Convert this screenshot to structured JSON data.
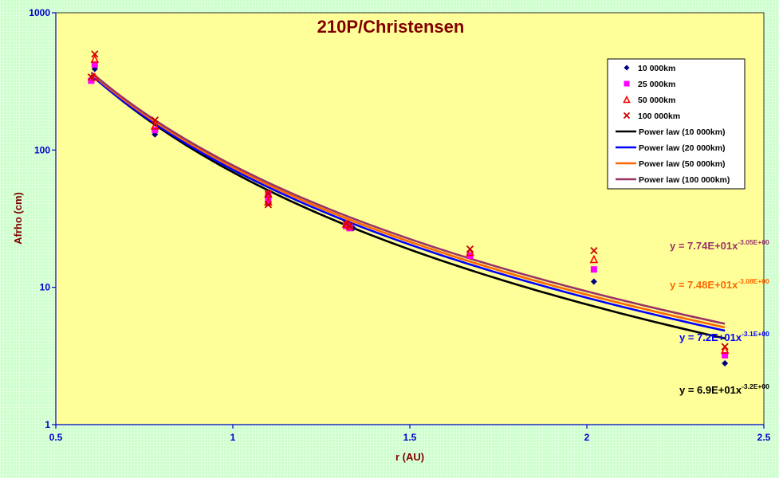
{
  "chart_data": {
    "type": "scatter",
    "title": "210P/Christensen",
    "xlabel": "r (AU)",
    "ylabel": "Afrho (cm)",
    "xlim": [
      0.5,
      2.5
    ],
    "ylim": [
      1,
      1000
    ],
    "yscale": "log",
    "x_ticks": [
      0.5,
      1,
      1.5,
      2,
      2.5
    ],
    "x_tick_labels": [
      "0.5",
      "1",
      "1.5",
      "2",
      "2.5"
    ],
    "y_ticks": [
      1,
      10,
      100,
      1000
    ],
    "y_tick_labels": [
      "1",
      "10",
      "100",
      "1000"
    ],
    "grid": false,
    "legend_position": "top-right",
    "colors": {
      "page_bg": "#ccffcc",
      "plot_bg": "#ffff99",
      "axis": "#0000cc",
      "title": "#800000"
    },
    "series": [
      {
        "name": "10 000km",
        "marker": "diamond",
        "color": "#000080",
        "x": [
          0.61,
          0.78,
          1.1,
          1.1,
          1.32,
          1.33,
          1.34,
          1.67,
          2.02,
          2.39
        ],
        "y": [
          390,
          130,
          41,
          44,
          28,
          27,
          27,
          17,
          11,
          2.8
        ]
      },
      {
        "name": "25 000km",
        "marker": "square",
        "color": "#ff00ff",
        "x": [
          0.6,
          0.61,
          0.78,
          1.1,
          1.1,
          1.32,
          1.33,
          1.67,
          2.02,
          2.39
        ],
        "y": [
          320,
          420,
          140,
          43,
          47,
          28,
          27,
          17,
          13.5,
          3.2
        ]
      },
      {
        "name": "50 000km",
        "marker": "triangle",
        "color": "#ff0000",
        "x": [
          0.61,
          0.61,
          0.78,
          1.1,
          1.1,
          1.32,
          1.33,
          1.67,
          2.02,
          2.39
        ],
        "y": [
          340,
          460,
          150,
          42,
          48,
          29,
          28,
          18,
          16,
          3.5
        ]
      },
      {
        "name": "100 000km",
        "marker": "x",
        "color": "#cc0000",
        "x": [
          0.6,
          0.61,
          0.78,
          1.1,
          1.1,
          1.32,
          1.33,
          1.67,
          2.02,
          2.39
        ],
        "y": [
          340,
          500,
          165,
          40,
          48,
          29,
          28,
          19,
          18.5,
          3.7
        ]
      }
    ],
    "fits": [
      {
        "name": "Power law (10 000km)",
        "color": "#000000",
        "a": 69.0,
        "b": -3.2,
        "equation": "y = 6.9E+01x",
        "exponent": "-3.2E+00"
      },
      {
        "name": "Power law (20 000km)",
        "color": "#0000ff",
        "a": 72.0,
        "b": -3.1,
        "equation": "y = 7.2E+01x",
        "exponent": "-3.1E+00"
      },
      {
        "name": "Power law (50 000km)",
        "color": "#ff6600",
        "a": 74.8,
        "b": -3.08,
        "equation": "y = 7.48E+01x",
        "exponent": "-3.08E+00"
      },
      {
        "name": "Power law (100 000km)",
        "color": "#993366",
        "a": 77.4,
        "b": -3.05,
        "equation": "y = 7.74E+01x",
        "exponent": "-3.05E+00"
      }
    ],
    "fit_x_range": [
      0.6,
      2.39
    ]
  }
}
